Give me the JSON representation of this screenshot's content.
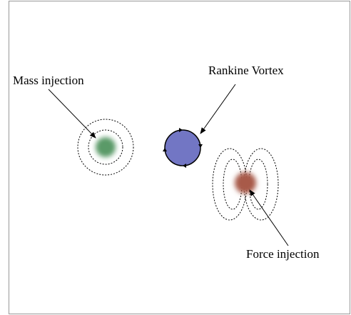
{
  "labels": {
    "mass": "Mass injection",
    "vortex": "Rankine Vortex",
    "force": "Force injection"
  }
}
